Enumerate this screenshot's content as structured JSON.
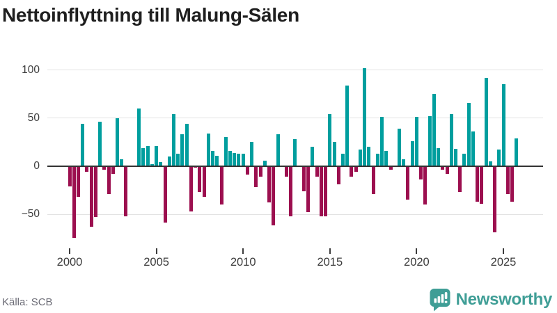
{
  "title": "Nettoinflyttning till Malung-Sälen",
  "source": "Källa: SCB",
  "brand": {
    "name": "Newsworthy"
  },
  "colors": {
    "positive": "#009e9e",
    "negative": "#9c0f4f",
    "axis": "#333333",
    "grid": "#e2e2e2",
    "title": "#1f1f1f",
    "tick_label": "#3c3c3c",
    "source_text": "#6c6c76",
    "brand": "#3f9e96",
    "background": "#ffffff"
  },
  "chart_data": {
    "type": "bar",
    "title": "Nettoinflyttning till Malung-Sälen",
    "frequency": "quarterly",
    "x_start": "2000 Q1",
    "values": [
      -20,
      -74,
      -31,
      44,
      -5,
      -62,
      -52,
      46,
      -3,
      -28,
      -7,
      50,
      7,
      -51,
      1,
      0,
      60,
      19,
      21,
      2,
      21,
      4,
      -58,
      10,
      54,
      13,
      33,
      44,
      -46,
      -1,
      -26,
      -31,
      34,
      16,
      11,
      -39,
      30,
      16,
      14,
      13,
      13,
      -8,
      25,
      -21,
      -10,
      6,
      -37,
      -61,
      33,
      1,
      -10,
      -51,
      28,
      1,
      -25,
      -47,
      20,
      -10,
      -51,
      -51,
      54,
      25,
      -18,
      13,
      84,
      -10,
      -5,
      17,
      102,
      20,
      -28,
      13,
      51,
      16,
      -3,
      1,
      39,
      7,
      -34,
      26,
      51,
      -13,
      -39,
      52,
      75,
      19,
      -3,
      -7,
      54,
      18,
      -26,
      13,
      66,
      36,
      -36,
      -38,
      92,
      5,
      -68,
      17,
      85,
      -28,
      -36,
      29
    ],
    "y_axis": {
      "ticks": [
        {
          "label": "100",
          "value": 100
        },
        {
          "label": "50",
          "value": 50
        },
        {
          "label": "0",
          "value": 0
        },
        {
          "label": "−50",
          "value": -50
        }
      ],
      "range": [
        -80,
        110
      ]
    },
    "x_axis": {
      "ticks": [
        {
          "label": "2000",
          "index": 0
        },
        {
          "label": "2005",
          "index": 20
        },
        {
          "label": "2010",
          "index": 40
        },
        {
          "label": "2015",
          "index": 60
        },
        {
          "label": "2020",
          "index": 80
        },
        {
          "label": "2025",
          "index": 100
        }
      ]
    },
    "grid": "horizontal",
    "legend": "none"
  }
}
